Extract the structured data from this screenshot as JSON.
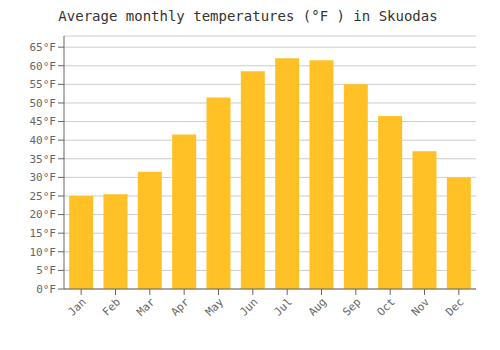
{
  "chart_data": {
    "type": "bar",
    "title": "Average monthly temperatures (°F ) in Skuodas",
    "categories": [
      "Jan",
      "Feb",
      "Mar",
      "Apr",
      "May",
      "Jun",
      "Jul",
      "Aug",
      "Sep",
      "Oct",
      "Nov",
      "Dec"
    ],
    "values": [
      25.0,
      25.5,
      31.5,
      41.5,
      51.5,
      58.5,
      62.0,
      61.5,
      55.0,
      46.5,
      37.0,
      30.0
    ],
    "color": "#FFC125",
    "ylim": [
      0,
      68
    ],
    "yticks": [
      {
        "value": 0,
        "label": "0°F"
      },
      {
        "value": 5,
        "label": "5°F"
      },
      {
        "value": 10,
        "label": "10°F"
      },
      {
        "value": 15,
        "label": "15°F"
      },
      {
        "value": 20,
        "label": "20°F"
      },
      {
        "value": 25,
        "label": "25°F"
      },
      {
        "value": 30,
        "label": "30°F"
      },
      {
        "value": 35,
        "label": "35°F"
      },
      {
        "value": 40,
        "label": "40°F"
      },
      {
        "value": 45,
        "label": "45°F"
      },
      {
        "value": 50,
        "label": "50°F"
      },
      {
        "value": 55,
        "label": "55°F"
      },
      {
        "value": 60,
        "label": "60°F"
      },
      {
        "value": 65,
        "label": "65°F"
      }
    ],
    "grid": true
  }
}
